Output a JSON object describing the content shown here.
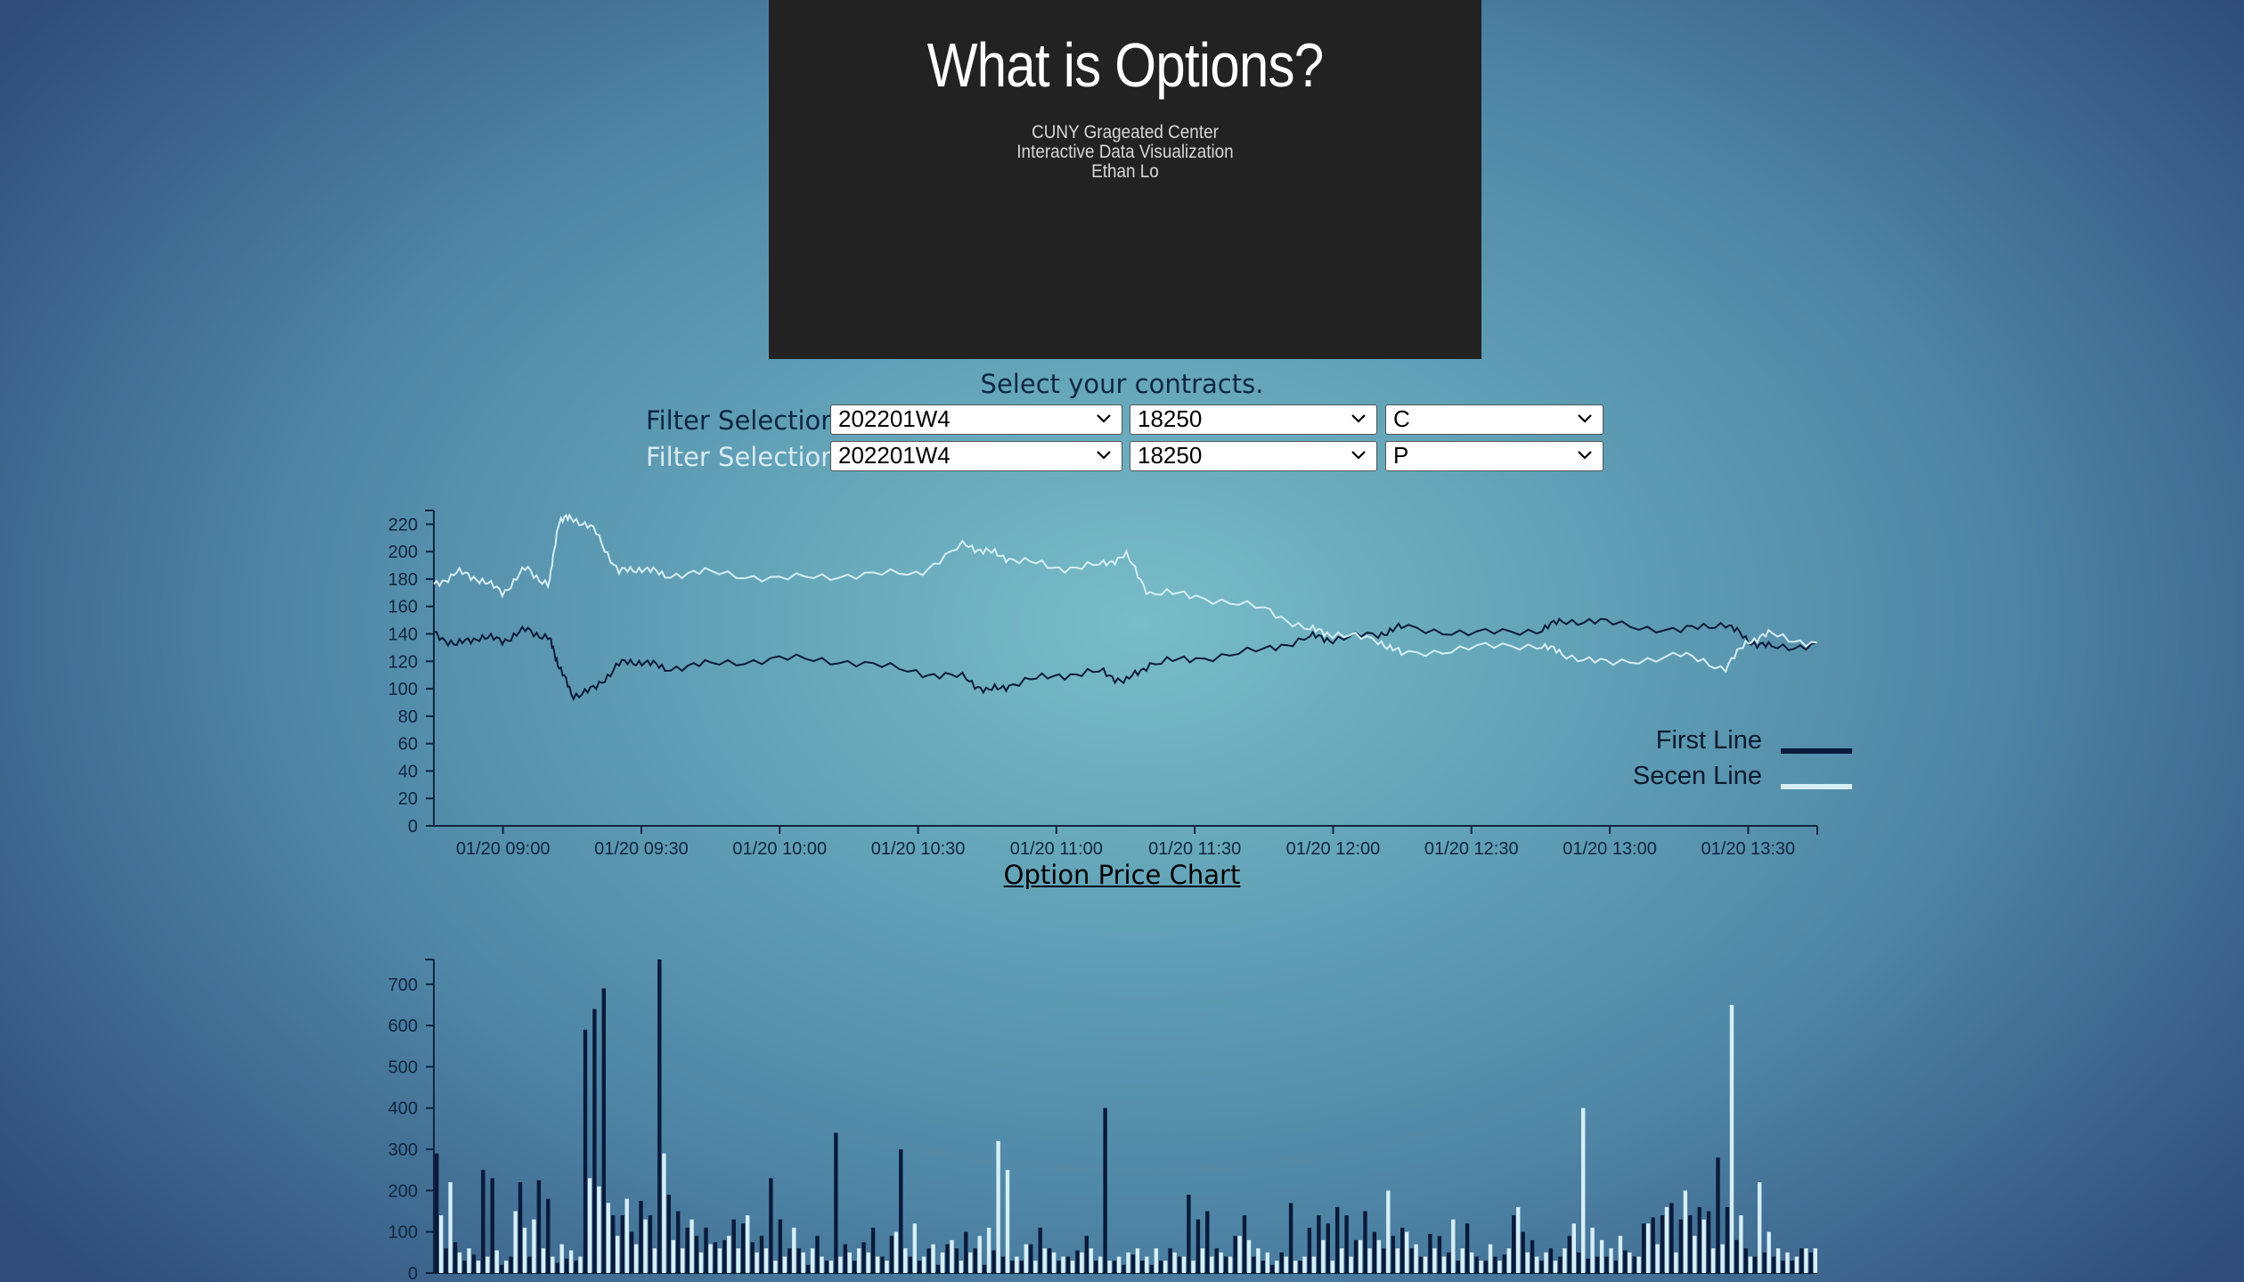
{
  "hero": {
    "title": "What is Options?",
    "subtitle_lines": [
      "CUNY Grageated Center",
      "Interactive Data Visualization",
      "Ethan Lo"
    ]
  },
  "filters": {
    "prompt": "Select your contracts.",
    "rows": [
      {
        "label": "Filter Selection",
        "label_color": "#0c2746",
        "week": "202201W4",
        "strike": "18250",
        "type": "C"
      },
      {
        "label": "Filter Selection",
        "label_color": "#d8ebf2",
        "week": "202201W4",
        "strike": "18250",
        "type": "P"
      }
    ]
  },
  "colors": {
    "first_line": "#0a1a3a",
    "second_line": "#d6eef5"
  },
  "chart_data": [
    {
      "type": "line",
      "title": "Option Price Chart",
      "xlabel": "",
      "ylabel": "",
      "ylim": [
        0,
        230
      ],
      "yticks": [
        0,
        20,
        40,
        60,
        80,
        100,
        120,
        140,
        160,
        180,
        200,
        220
      ],
      "xticks": [
        "01/20 09:00",
        "01/20 09:30",
        "01/20 10:00",
        "01/20 10:30",
        "01/20 11:00",
        "01/20 11:30",
        "01/20 12:00",
        "01/20 12:30",
        "01/20 13:00",
        "01/20 13:30"
      ],
      "x_time_range": [
        "01/20 08:45",
        "01/20 13:45"
      ],
      "x_key_times": [
        "01/20 08:45",
        "01/20 08:50",
        "01/20 08:55",
        "01/20 09:00",
        "01/20 09:05",
        "01/20 09:10",
        "01/20 09:12",
        "01/20 09:15",
        "01/20 09:20",
        "01/20 09:25",
        "01/20 09:30",
        "01/20 09:35",
        "01/20 09:45",
        "01/20 10:00",
        "01/20 10:15",
        "01/20 10:30",
        "01/20 10:40",
        "01/20 10:45",
        "01/20 10:50",
        "01/20 11:00",
        "01/20 11:10",
        "01/20 11:15",
        "01/20 11:20",
        "01/20 11:30",
        "01/20 11:45",
        "01/20 11:55",
        "01/20 12:00",
        "01/20 12:10",
        "01/20 12:15",
        "01/20 12:30",
        "01/20 12:45",
        "01/20 12:50",
        "01/20 13:00",
        "01/20 13:15",
        "01/20 13:25",
        "01/20 13:30",
        "01/20 13:35",
        "01/20 13:45"
      ],
      "series": [
        {
          "name": "First Line",
          "values": [
            140,
            132,
            138,
            135,
            143,
            137,
            118,
            95,
            100,
            118,
            120,
            115,
            118,
            122,
            120,
            112,
            108,
            98,
            103,
            110,
            112,
            105,
            118,
            122,
            128,
            138,
            136,
            140,
            145,
            140,
            143,
            150,
            148,
            142,
            148,
            135,
            130,
            132
          ]
        },
        {
          "name": "Secen Line",
          "values": [
            175,
            185,
            180,
            170,
            188,
            175,
            222,
            225,
            215,
            185,
            188,
            183,
            185,
            180,
            183,
            184,
            205,
            200,
            195,
            188,
            190,
            198,
            170,
            168,
            158,
            143,
            140,
            135,
            125,
            130,
            132,
            125,
            118,
            125,
            115,
            135,
            140,
            132
          ]
        }
      ],
      "legend": {
        "position": "bottom-right",
        "entries": [
          "First Line",
          "Secen Line"
        ]
      }
    },
    {
      "type": "bar",
      "title": "",
      "ylim": [
        0,
        760
      ],
      "yticks": [
        0,
        100,
        200,
        300,
        400,
        500,
        600,
        700
      ],
      "x_time_range": [
        "01/20 08:45",
        "01/20 13:45"
      ],
      "series": [
        {
          "name": "",
          "values": [
            290,
            60,
            75,
            30,
            45,
            250,
            230,
            20,
            40,
            220,
            40,
            225,
            180,
            25,
            35,
            30,
            590,
            640,
            690,
            140,
            140,
            100,
            175,
            140,
            760,
            190,
            150,
            110,
            90,
            110,
            75,
            80,
            130,
            120,
            75,
            90,
            230,
            130,
            60,
            60,
            20,
            90,
            30,
            340,
            70,
            30,
            75,
            110,
            40,
            90,
            300,
            40,
            30,
            60,
            20,
            70,
            60,
            100,
            60,
            20,
            55,
            40,
            30,
            30,
            70,
            110,
            60,
            30,
            40,
            55,
            90,
            30,
            400,
            30,
            20,
            45,
            30,
            20,
            30,
            60,
            40,
            190,
            130,
            150,
            60,
            40,
            90,
            140,
            40,
            30,
            20,
            50,
            170,
            30,
            110,
            140,
            120,
            160,
            140,
            80,
            150,
            100,
            60,
            90,
            110,
            60,
            40,
            95,
            90,
            50,
            30,
            120,
            40,
            30,
            40,
            45,
            140,
            100,
            80,
            30,
            60,
            40,
            90,
            50,
            35,
            40,
            40,
            30,
            55,
            40,
            120,
            135,
            140,
            170,
            130,
            140,
            160,
            150,
            280,
            160,
            80,
            60,
            40,
            50,
            40,
            30,
            30,
            60,
            50
          ]
        },
        {
          "name": "",
          "values": [
            140,
            220,
            50,
            60,
            30,
            40,
            55,
            30,
            150,
            110,
            130,
            60,
            40,
            70,
            55,
            40,
            230,
            210,
            170,
            90,
            180,
            70,
            130,
            60,
            290,
            80,
            60,
            130,
            50,
            70,
            60,
            90,
            60,
            140,
            50,
            60,
            30,
            40,
            110,
            50,
            60,
            40,
            30,
            40,
            50,
            60,
            50,
            40,
            30,
            100,
            60,
            120,
            40,
            70,
            50,
            80,
            30,
            50,
            90,
            110,
            320,
            250,
            40,
            70,
            30,
            60,
            50,
            40,
            30,
            50,
            60,
            40,
            30,
            40,
            50,
            60,
            40,
            60,
            30,
            50,
            40,
            30,
            60,
            40,
            50,
            40,
            90,
            80,
            60,
            50,
            30,
            40,
            30,
            40,
            40,
            80,
            30,
            60,
            40,
            80,
            60,
            80,
            200,
            60,
            100,
            70,
            40,
            60,
            40,
            130,
            60,
            50,
            30,
            70,
            30,
            60,
            160,
            50,
            40,
            50,
            30,
            60,
            120,
            400,
            110,
            80,
            60,
            90,
            50,
            40,
            120,
            70,
            160,
            50,
            200,
            90,
            130,
            60,
            70,
            650,
            140,
            40,
            220,
            100,
            60,
            50,
            40,
            60,
            60
          ]
        }
      ]
    }
  ]
}
